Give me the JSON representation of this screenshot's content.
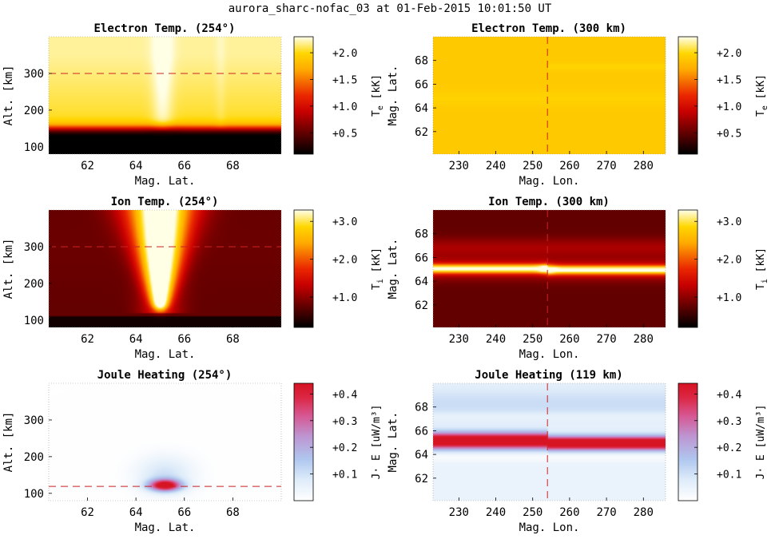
{
  "figure_title": "aurora_sharc-nofac_03 at 01-Feb-2015 10:01:50 UT",
  "chart_data": [
    {
      "type": "heatmap",
      "title": "Electron Temp. (254°)",
      "xlabel": "Mag. Lat.",
      "ylabel": "Alt. [km]",
      "xlim": [
        60.4,
        70.0
      ],
      "ylim": [
        80,
        400
      ],
      "xticks": [
        62,
        64,
        66,
        68
      ],
      "yticks": [
        100,
        200,
        300
      ],
      "colormap": "hot",
      "colorbar": {
        "label": "T",
        "subscript": "e",
        "unit": "[kK]",
        "lim": [
          0.1,
          2.3
        ],
        "ticks": [
          0.5,
          1.0,
          1.5,
          2.0
        ],
        "ticklabels": [
          "+0.5",
          "+1.0",
          "+1.5",
          "+2.0"
        ]
      },
      "reference_line": {
        "orientation": "horizontal",
        "value": 300,
        "color": "#cc2222"
      },
      "field": "electron_alt"
    },
    {
      "type": "heatmap",
      "title": "Electron Temp. (300 km)",
      "xlabel": "Mag. Lon.",
      "ylabel": "Mag. Lat.",
      "xlim": [
        223,
        286
      ],
      "ylim": [
        60.1,
        70.0
      ],
      "xticks": [
        230,
        240,
        250,
        260,
        270,
        280
      ],
      "yticks": [
        62,
        64,
        66,
        68
      ],
      "colormap": "hot",
      "colorbar": {
        "label": "T",
        "subscript": "e",
        "unit": "[kK]",
        "lim": [
          0.1,
          2.3
        ],
        "ticks": [
          0.5,
          1.0,
          1.5,
          2.0
        ],
        "ticklabels": [
          "+0.5",
          "+1.0",
          "+1.5",
          "+2.0"
        ]
      },
      "reference_line": {
        "orientation": "vertical",
        "value": 254,
        "color": "#cc2222"
      },
      "field": "electron_lon"
    },
    {
      "type": "heatmap",
      "title": "Ion Temp. (254°)",
      "xlabel": "Mag. Lat.",
      "ylabel": "Alt. [km]",
      "xlim": [
        60.4,
        70.0
      ],
      "ylim": [
        80,
        400
      ],
      "xticks": [
        62,
        64,
        66,
        68
      ],
      "yticks": [
        100,
        200,
        300
      ],
      "colormap": "hot",
      "colorbar": {
        "label": "T",
        "subscript": "i",
        "unit": "[kK]",
        "lim": [
          0.2,
          3.3
        ],
        "ticks": [
          1.0,
          2.0,
          3.0
        ],
        "ticklabels": [
          "+1.0",
          "+2.0",
          "+3.0"
        ]
      },
      "reference_line": {
        "orientation": "horizontal",
        "value": 300,
        "color": "#cc2222"
      },
      "field": "ion_alt"
    },
    {
      "type": "heatmap",
      "title": "Ion Temp. (300 km)",
      "xlabel": "Mag. Lon.",
      "ylabel": "Mag. Lat.",
      "xlim": [
        223,
        286
      ],
      "ylim": [
        60.1,
        70.0
      ],
      "xticks": [
        230,
        240,
        250,
        260,
        270,
        280
      ],
      "yticks": [
        62,
        64,
        66,
        68
      ],
      "colormap": "hot",
      "colorbar": {
        "label": "T",
        "subscript": "i",
        "unit": "[kK]",
        "lim": [
          0.2,
          3.3
        ],
        "ticks": [
          1.0,
          2.0,
          3.0
        ],
        "ticklabels": [
          "+1.0",
          "+2.0",
          "+3.0"
        ]
      },
      "reference_line": {
        "orientation": "vertical",
        "value": 254,
        "color": "#cc2222"
      },
      "field": "ion_lon"
    },
    {
      "type": "heatmap",
      "title": "Joule Heating (254°)",
      "xlabel": "Mag. Lat.",
      "ylabel": "Alt. [km]",
      "xlim": [
        60.4,
        70.0
      ],
      "ylim": [
        80,
        400
      ],
      "xticks": [
        62,
        64,
        66,
        68
      ],
      "yticks": [
        100,
        200,
        300
      ],
      "colormap": "white-blue-purple-red",
      "colorbar": {
        "label": "J· E",
        "subscript": "",
        "unit": "[uW/m³]",
        "lim": [
          0.0,
          0.44
        ],
        "ticks": [
          0.1,
          0.2,
          0.3,
          0.4
        ],
        "ticklabels": [
          "+0.1",
          "+0.2",
          "+0.3",
          "+0.4"
        ]
      },
      "reference_line": {
        "orientation": "horizontal",
        "value": 119,
        "color": "#cc2222"
      },
      "field": "joule_alt"
    },
    {
      "type": "heatmap",
      "title": "Joule Heating (119 km)",
      "xlabel": "Mag. Lon.",
      "ylabel": "Mag. Lat.",
      "xlim": [
        223,
        286
      ],
      "ylim": [
        60.1,
        70.0
      ],
      "xticks": [
        230,
        240,
        250,
        260,
        270,
        280
      ],
      "yticks": [
        62,
        64,
        66,
        68
      ],
      "colormap": "white-blue-purple-red",
      "colorbar": {
        "label": "J· E",
        "subscript": "",
        "unit": "[uW/m³]",
        "lim": [
          0.0,
          0.44
        ],
        "ticks": [
          0.1,
          0.2,
          0.3,
          0.4
        ],
        "ticklabels": [
          "+0.1",
          "+0.2",
          "+0.3",
          "+0.4"
        ]
      },
      "reference_line": {
        "orientation": "vertical",
        "value": 254,
        "color": "#cc2222"
      },
      "field": "joule_lon"
    }
  ]
}
